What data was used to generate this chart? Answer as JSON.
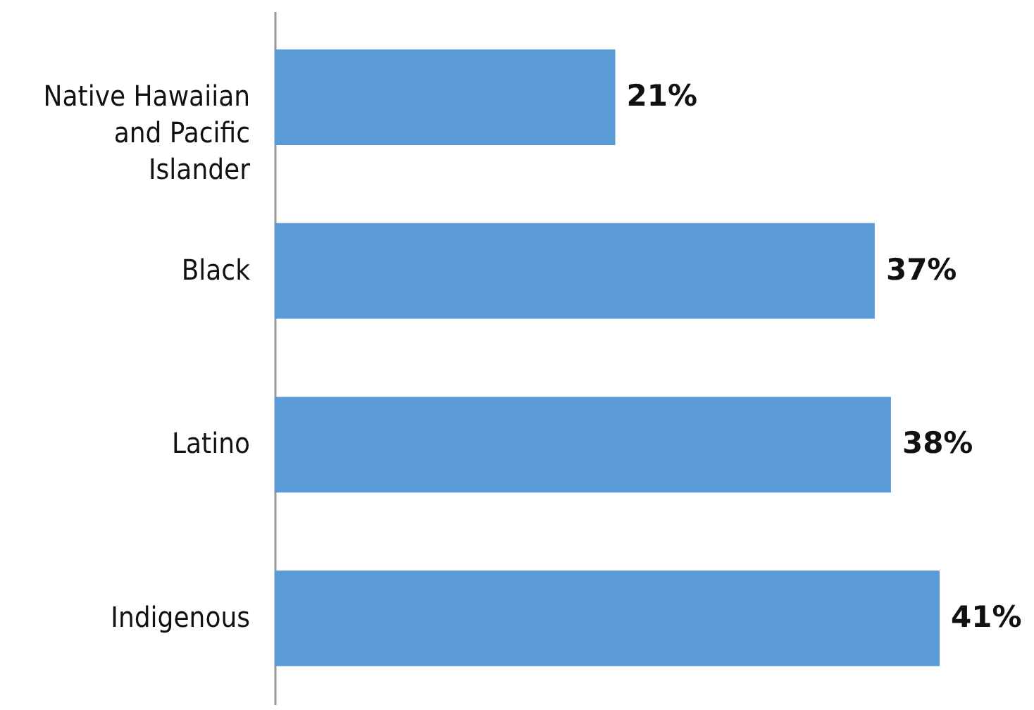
{
  "chart_data": {
    "type": "bar",
    "orientation": "horizontal",
    "categories": [
      "Native Hawaiian and Pacific Islander",
      "Black",
      "Latino",
      "Indigenous"
    ],
    "values": [
      21,
      37,
      38,
      41
    ],
    "value_labels": [
      "21%",
      "37%",
      "38%",
      "41%"
    ],
    "color": "#5b9bd5"
  }
}
